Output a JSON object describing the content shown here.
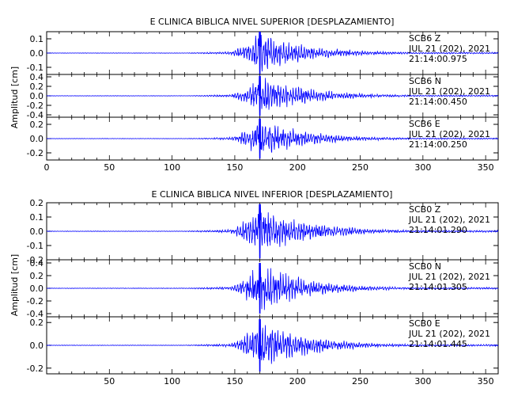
{
  "chart_data": [
    {
      "type": "line",
      "title": "E CLINICA BIBLICA NIVEL SUPERIOR [DESPLAZAMIENTO]",
      "ylabel": "Amplitud [cm]",
      "xlim": [
        0,
        360
      ],
      "x_ticks": [
        "0",
        "50",
        "100",
        "150",
        "200",
        "250",
        "300",
        "350"
      ],
      "grid": false,
      "color": "#0000ff",
      "panels": [
        {
          "station": "SCB6",
          "component": "Z",
          "date": "JUL 21 (202), 2021",
          "time": "21:14:00.975",
          "ylim": [
            -0.15,
            0.15
          ],
          "y_ticks": [
            "0.1",
            "0.0",
            "-0.1"
          ],
          "y_tick_values": [
            0.1,
            0.0,
            -0.1
          ],
          "peak": 0.15,
          "onset": 145,
          "peak_time": 170,
          "coda_end": 360
        },
        {
          "station": "SCB6",
          "component": "N",
          "date": "JUL 21 (202), 2021",
          "time": "21:14:00.450",
          "ylim": [
            -0.45,
            0.45
          ],
          "y_ticks": [
            "0.4",
            "0.2",
            "0.0",
            "-0.2",
            "-0.4"
          ],
          "y_tick_values": [
            0.4,
            0.2,
            0.0,
            -0.2,
            -0.4
          ],
          "peak": 0.42,
          "onset": 145,
          "peak_time": 170,
          "coda_end": 360
        },
        {
          "station": "SCB6",
          "component": "E",
          "date": "JUL 21 (202), 2021",
          "time": "21:14:00.250",
          "ylim": [
            -0.3,
            0.3
          ],
          "y_ticks": [
            "0.2",
            "0.0",
            "-0.2"
          ],
          "y_tick_values": [
            0.2,
            0.0,
            -0.2
          ],
          "peak": 0.28,
          "onset": 145,
          "peak_time": 170,
          "coda_end": 360
        }
      ]
    },
    {
      "type": "line",
      "title": "E CLINICA BIBLICA NIVEL INFERIOR [DESPLAZAMIENTO]",
      "ylabel": "Amplitud [cm]",
      "xlim": [
        0,
        360
      ],
      "x_ticks": [
        "50",
        "100",
        "150",
        "200",
        "250",
        "300",
        "350"
      ],
      "grid": false,
      "color": "#0000ff",
      "panels": [
        {
          "station": "SCB0",
          "component": "Z",
          "date": "JUL 21 (202), 2021",
          "time": "21:14:01.290",
          "ylim": [
            -0.2,
            0.2
          ],
          "y_ticks": [
            "0.2",
            "0.1",
            "0.0",
            "-0.1",
            "-0.2"
          ],
          "y_tick_values": [
            0.2,
            0.1,
            0.0,
            -0.1,
            -0.2
          ],
          "peak": 0.19,
          "onset": 145,
          "peak_time": 170,
          "coda_end": 360
        },
        {
          "station": "SCB0",
          "component": "N",
          "date": "JUL 21 (202), 2021",
          "time": "21:14:01.305",
          "ylim": [
            -0.45,
            0.45
          ],
          "y_ticks": [
            "0.4",
            "0.2",
            "0.0",
            "-0.2",
            "-0.4"
          ],
          "y_tick_values": [
            0.4,
            0.2,
            0.0,
            -0.2,
            -0.4
          ],
          "peak": 0.4,
          "onset": 145,
          "peak_time": 170,
          "coda_end": 360
        },
        {
          "station": "SCB0",
          "component": "E",
          "date": "JUL 21 (202), 2021",
          "time": "21:14:01.445",
          "ylim": [
            -0.25,
            0.25
          ],
          "y_ticks": [
            "0.2",
            "0.0",
            "-0.2"
          ],
          "y_tick_values": [
            0.2,
            0.0,
            -0.2
          ],
          "peak": 0.23,
          "onset": 145,
          "peak_time": 170,
          "coda_end": 360
        }
      ]
    }
  ]
}
